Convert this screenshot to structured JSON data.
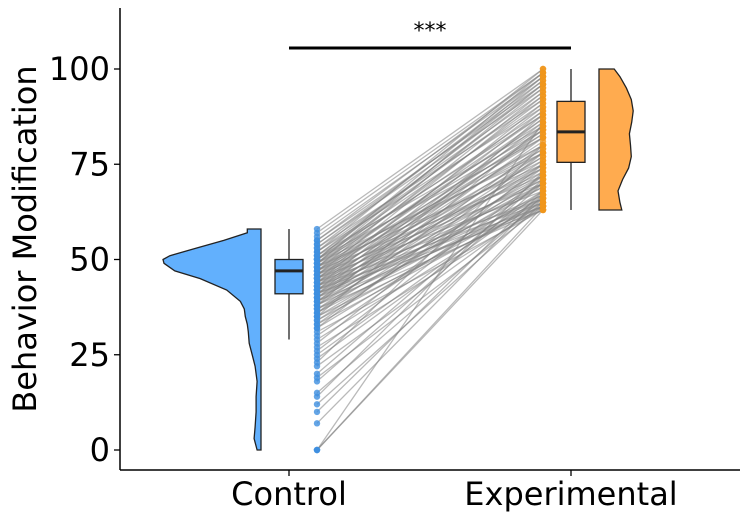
{
  "chart_data": {
    "type": "raincloud",
    "xlabel": "",
    "ylabel": "Behavior Modification",
    "categories": [
      "Control",
      "Experimental"
    ],
    "yticks": [
      0,
      25,
      50,
      75,
      100
    ],
    "ylim": [
      -5,
      115
    ],
    "significance": "***",
    "colors": {
      "Control": "#62b0fd",
      "Experimental": "#ffab4f",
      "lines": "#808080"
    },
    "boxplots": [
      {
        "group": "Control",
        "whisker_low": 29,
        "q1": 41,
        "median": 47,
        "q3": 50,
        "whisker_high": 58
      },
      {
        "group": "Experimental",
        "whisker_low": 63,
        "q1": 75.5,
        "median": 83.5,
        "q3": 91.5,
        "whisker_high": 100
      }
    ],
    "density": {
      "Control": [
        [
          0,
          0.04
        ],
        [
          3,
          0.07
        ],
        [
          6,
          0.06
        ],
        [
          10,
          0.05
        ],
        [
          14,
          0.05
        ],
        [
          18,
          0.04
        ],
        [
          22,
          0.06
        ],
        [
          25,
          0.09
        ],
        [
          28,
          0.12
        ],
        [
          31,
          0.13
        ],
        [
          33,
          0.14
        ],
        [
          35,
          0.16
        ],
        [
          37,
          0.17
        ],
        [
          39,
          0.21
        ],
        [
          42,
          0.35
        ],
        [
          45,
          0.62
        ],
        [
          47,
          0.88
        ],
        [
          49,
          0.99
        ],
        [
          50,
          1.0
        ],
        [
          51,
          0.93
        ],
        [
          53,
          0.66
        ],
        [
          55,
          0.38
        ],
        [
          57,
          0.14
        ],
        [
          58,
          0.14
        ]
      ],
      "Experimental": [
        [
          63,
          0.6
        ],
        [
          65,
          0.55
        ],
        [
          68,
          0.5
        ],
        [
          71,
          0.62
        ],
        [
          74,
          0.78
        ],
        [
          77,
          0.85
        ],
        [
          80,
          0.83
        ],
        [
          83,
          0.8
        ],
        [
          86,
          0.86
        ],
        [
          89,
          0.9
        ],
        [
          92,
          0.85
        ],
        [
          95,
          0.72
        ],
        [
          98,
          0.55
        ],
        [
          100,
          0.4
        ]
      ]
    },
    "pairs": [
      [
        58,
        100
      ],
      [
        57,
        99
      ],
      [
        56,
        98
      ],
      [
        55,
        96
      ],
      [
        55,
        99
      ],
      [
        54,
        95
      ],
      [
        54,
        97
      ],
      [
        53,
        92
      ],
      [
        53,
        98
      ],
      [
        52,
        90
      ],
      [
        52,
        94
      ],
      [
        52,
        100
      ],
      [
        51,
        85
      ],
      [
        51,
        93
      ],
      [
        51,
        96
      ],
      [
        50,
        82
      ],
      [
        50,
        88
      ],
      [
        50,
        91
      ],
      [
        50,
        97
      ],
      [
        50,
        99
      ],
      [
        49,
        78
      ],
      [
        49,
        84
      ],
      [
        49,
        89
      ],
      [
        49,
        95
      ],
      [
        49,
        98
      ],
      [
        48,
        75
      ],
      [
        48,
        80
      ],
      [
        48,
        86
      ],
      [
        48,
        92
      ],
      [
        48,
        96
      ],
      [
        47,
        72
      ],
      [
        47,
        79
      ],
      [
        47,
        83
      ],
      [
        47,
        88
      ],
      [
        47,
        94
      ],
      [
        46,
        70
      ],
      [
        46,
        76
      ],
      [
        46,
        82
      ],
      [
        46,
        87
      ],
      [
        46,
        93
      ],
      [
        45,
        68
      ],
      [
        45,
        74
      ],
      [
        45,
        80
      ],
      [
        45,
        85
      ],
      [
        45,
        90
      ],
      [
        44,
        66
      ],
      [
        44,
        73
      ],
      [
        44,
        78
      ],
      [
        44,
        84
      ],
      [
        44,
        91
      ],
      [
        43,
        65
      ],
      [
        43,
        71
      ],
      [
        43,
        77
      ],
      [
        43,
        83
      ],
      [
        43,
        89
      ],
      [
        42,
        64
      ],
      [
        42,
        69
      ],
      [
        42,
        75
      ],
      [
        42,
        81
      ],
      [
        42,
        87
      ],
      [
        41,
        63
      ],
      [
        41,
        67
      ],
      [
        41,
        74
      ],
      [
        41,
        79
      ],
      [
        41,
        86
      ],
      [
        40,
        66
      ],
      [
        40,
        72
      ],
      [
        40,
        78
      ],
      [
        40,
        84
      ],
      [
        39,
        64
      ],
      [
        39,
        70
      ],
      [
        39,
        77
      ],
      [
        39,
        82
      ],
      [
        38,
        65
      ],
      [
        38,
        71
      ],
      [
        38,
        76
      ],
      [
        38,
        88
      ],
      [
        37,
        63
      ],
      [
        37,
        69
      ],
      [
        37,
        75
      ],
      [
        36,
        67
      ],
      [
        36,
        73
      ],
      [
        36,
        80
      ],
      [
        35,
        64
      ],
      [
        35,
        70
      ],
      [
        35,
        85
      ],
      [
        34,
        66
      ],
      [
        34,
        72
      ],
      [
        33,
        65
      ],
      [
        33,
        74
      ],
      [
        32,
        68
      ],
      [
        32,
        78
      ],
      [
        31,
        63
      ],
      [
        30,
        70
      ],
      [
        29,
        66
      ],
      [
        28,
        75
      ],
      [
        27,
        64
      ],
      [
        26,
        72
      ],
      [
        25,
        68
      ],
      [
        24,
        67
      ],
      [
        23,
        80
      ],
      [
        22,
        65
      ],
      [
        20,
        71
      ],
      [
        19,
        64
      ],
      [
        18,
        70
      ],
      [
        15,
        66
      ],
      [
        14,
        73
      ],
      [
        12,
        65
      ],
      [
        10,
        68
      ],
      [
        7,
        67
      ],
      [
        0,
        86
      ],
      [
        0,
        64
      ],
      [
        0,
        63
      ]
    ]
  }
}
